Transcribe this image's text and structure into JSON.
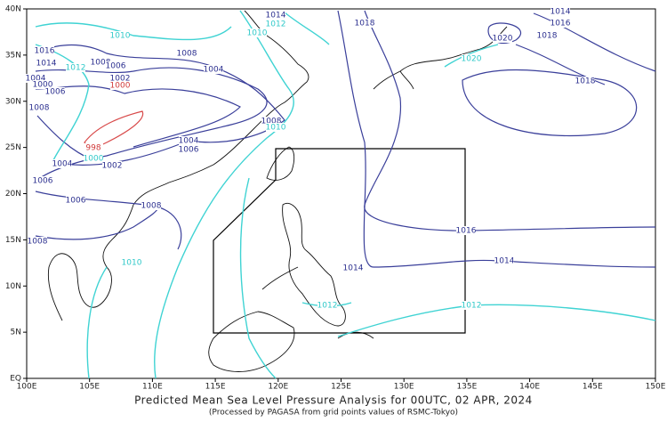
{
  "title": "Predicted Mean Sea Level Pressure Analysis for 00UTC, 02 APR, 2024",
  "subtitle": "(Processed by PAGASA from grid points values of RSMC-Tokyo)",
  "lon_labels": [
    "100E",
    "105E",
    "110E",
    "115E",
    "120E",
    "125E",
    "130E",
    "135E",
    "140E",
    "145E",
    "150E"
  ],
  "lat_labels": [
    "EQ",
    "5N",
    "10N",
    "15N",
    "20N",
    "25N",
    "30N",
    "35N",
    "40N"
  ],
  "isobar_labels": [
    "1014",
    "1012",
    "1010",
    "1018",
    "1020",
    "1014",
    "1016",
    "1018",
    "1020",
    "1018",
    "1016",
    "1014",
    "1012",
    "1010",
    "1008",
    "1006",
    "1004",
    "1002",
    "1000",
    "1006",
    "1000",
    "1008",
    "1008",
    "1004",
    "998",
    "1000",
    "1004",
    "1002",
    "1004",
    "1006",
    "1008",
    "1010",
    "1006",
    "1006",
    "1008",
    "1008",
    "1010",
    "1016",
    "1014",
    "1014",
    "1012",
    "1012"
  ]
}
